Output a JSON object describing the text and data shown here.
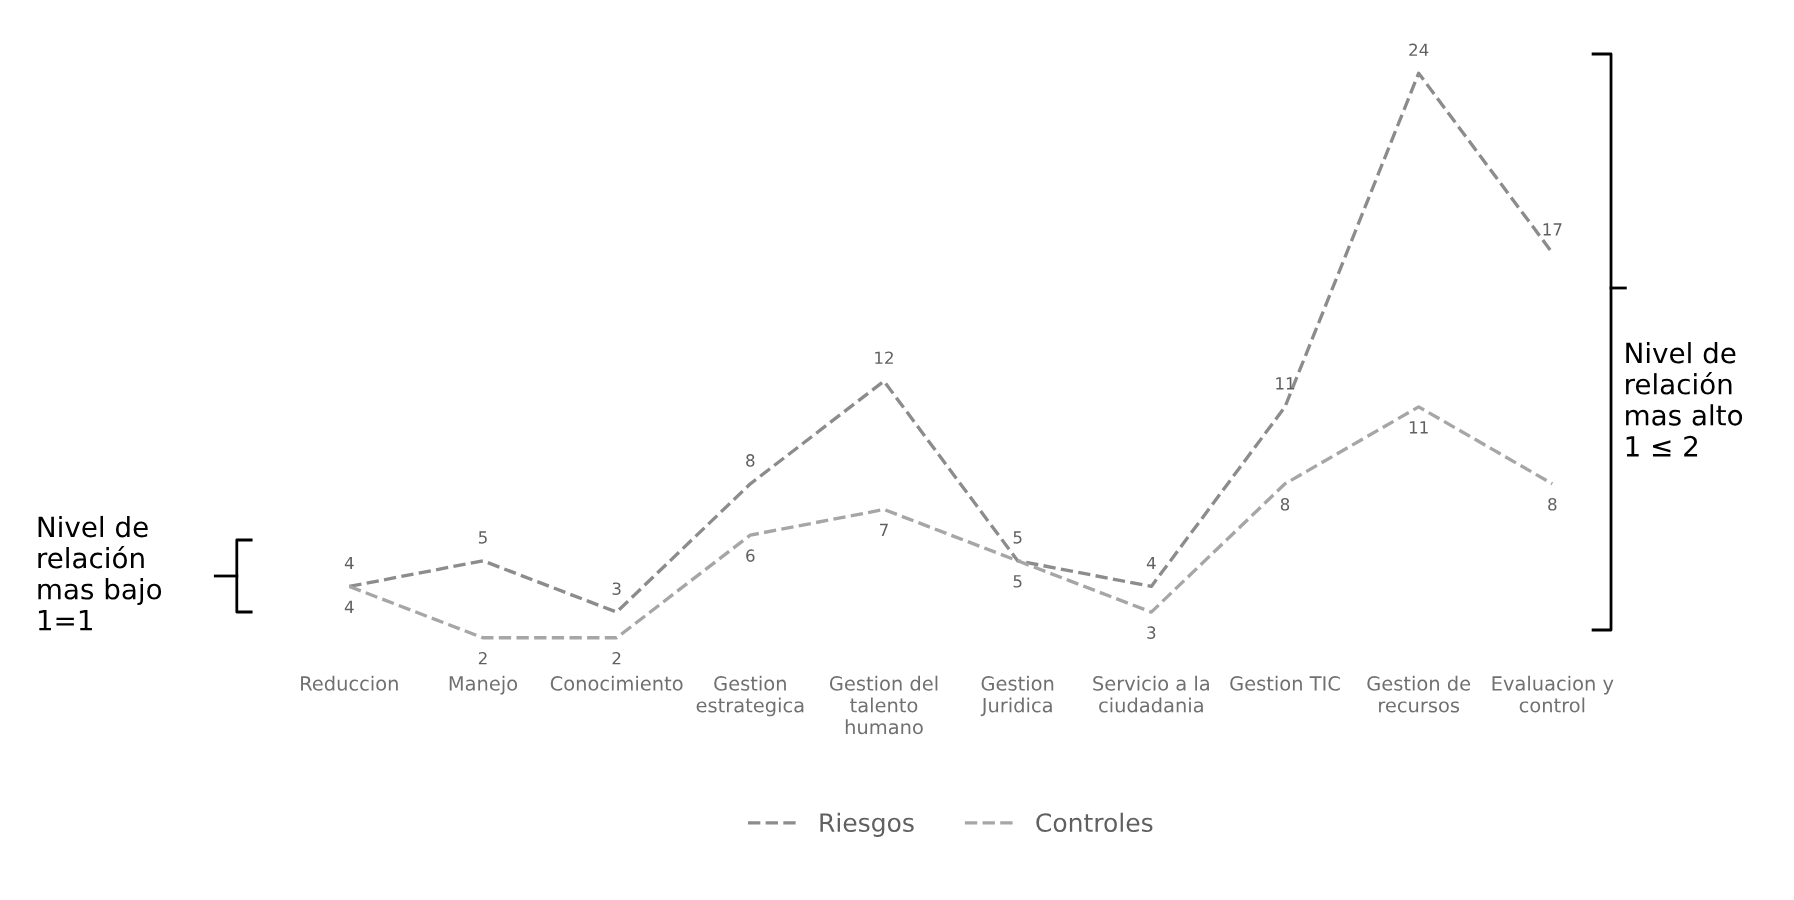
{
  "chart_data": {
    "type": "line",
    "categories": [
      "Reduccion",
      "Manejo",
      "Conocimiento",
      "Gestion\nestrategica",
      "Gestion del\ntalento\nhumano",
      "Gestion\nJuridica",
      "Servicio a la\nciudadania",
      "Gestion TIC",
      "Gestion de\nrecursos",
      "Evaluacion y\ncontrol"
    ],
    "series": [
      {
        "name": "Riesgos",
        "color": "#8c8c8c",
        "values": [
          4,
          5,
          3,
          8,
          12,
          5,
          4,
          11,
          24,
          17
        ]
      },
      {
        "name": "Controles",
        "color": "#a6a6a6",
        "values": [
          4,
          2,
          2,
          6,
          7,
          5,
          3,
          8,
          11,
          8
        ]
      }
    ],
    "tick_labels": "x",
    "data_labels": true,
    "line_style": "dashed",
    "marker": "none",
    "grid": false,
    "legend": "bottom",
    "annotations": [
      "Nivel de\nrelación\nmas bajo\n1=1",
      "Nivel de\nrelación\nmas alto\n1 ≤ 2"
    ]
  }
}
